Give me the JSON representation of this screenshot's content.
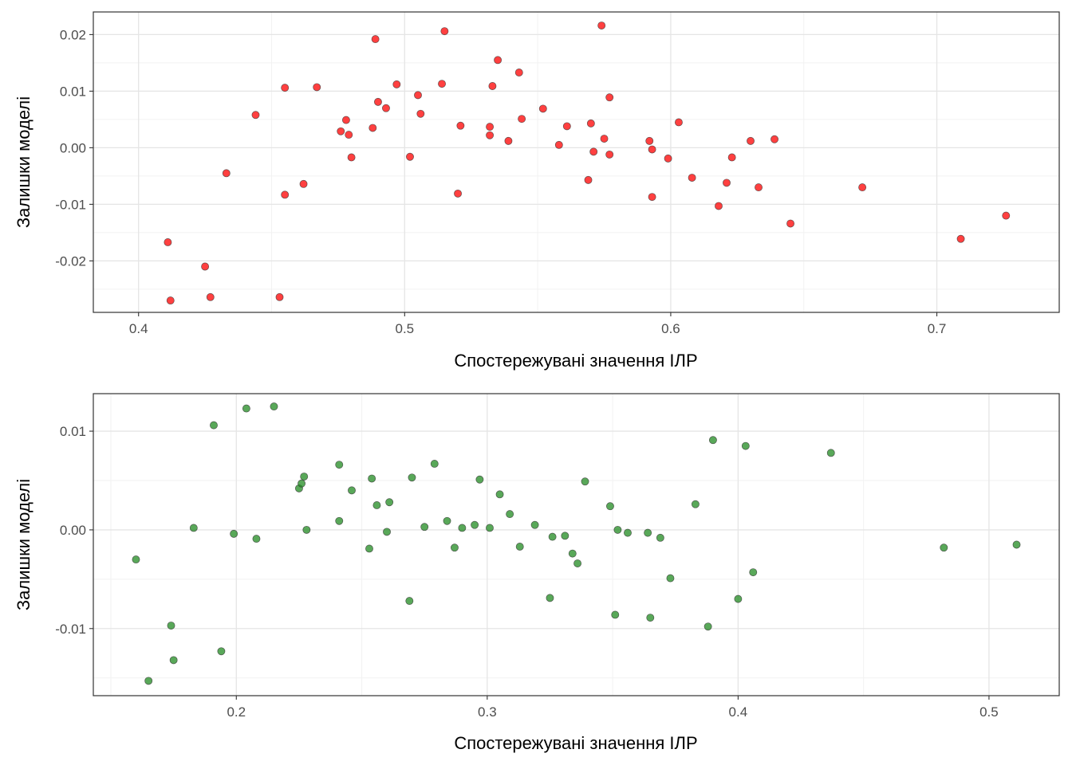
{
  "chart_data": [
    {
      "type": "scatter",
      "title": "",
      "xlabel": "Спостережувані значення ІЛР",
      "ylabel": "Залишки моделі",
      "xlim": [
        0.383,
        0.746
      ],
      "ylim": [
        -0.0291,
        0.024
      ],
      "x_ticks": [
        0.4,
        0.5,
        0.6,
        0.7
      ],
      "x_tick_labels": [
        "0.4",
        "0.5",
        "0.6",
        "0.7"
      ],
      "y_ticks": [
        -0.02,
        -0.01,
        0.0,
        0.01,
        0.02
      ],
      "y_tick_labels": [
        "-0.02",
        "-0.01",
        "0.00",
        "0.01",
        "0.02"
      ],
      "grid": true,
      "point_color": "#ff0000",
      "series": [
        {
          "points": [
            [
              0.411,
              -0.0167
            ],
            [
              0.412,
              -0.027
            ],
            [
              0.425,
              -0.021
            ],
            [
              0.427,
              -0.0264
            ],
            [
              0.433,
              -0.0045
            ],
            [
              0.444,
              0.0058
            ],
            [
              0.453,
              -0.0264
            ],
            [
              0.455,
              0.0106
            ],
            [
              0.455,
              -0.0083
            ],
            [
              0.462,
              -0.0064
            ],
            [
              0.467,
              0.0107
            ],
            [
              0.476,
              0.0029
            ],
            [
              0.478,
              0.0049
            ],
            [
              0.479,
              0.0023
            ],
            [
              0.48,
              -0.0017
            ],
            [
              0.488,
              0.0035
            ],
            [
              0.489,
              0.0192
            ],
            [
              0.49,
              0.0081
            ],
            [
              0.493,
              0.007
            ],
            [
              0.497,
              0.0112
            ],
            [
              0.502,
              -0.0016
            ],
            [
              0.505,
              0.0093
            ],
            [
              0.506,
              0.006
            ],
            [
              0.514,
              0.0113
            ],
            [
              0.515,
              0.0206
            ],
            [
              0.52,
              -0.0081
            ],
            [
              0.521,
              0.0039
            ],
            [
              0.532,
              0.0037
            ],
            [
              0.532,
              0.0022
            ],
            [
              0.533,
              0.0109
            ],
            [
              0.535,
              0.0155
            ],
            [
              0.539,
              0.0012
            ],
            [
              0.543,
              0.0133
            ],
            [
              0.544,
              0.0051
            ],
            [
              0.552,
              0.0069
            ],
            [
              0.558,
              0.0005
            ],
            [
              0.561,
              0.0038
            ],
            [
              0.569,
              -0.0057
            ],
            [
              0.57,
              0.0043
            ],
            [
              0.571,
              -0.0007
            ],
            [
              0.574,
              0.0216
            ],
            [
              0.575,
              0.0016
            ],
            [
              0.577,
              -0.0012
            ],
            [
              0.577,
              0.0089
            ],
            [
              0.592,
              0.0012
            ],
            [
              0.593,
              -0.0003
            ],
            [
              0.593,
              -0.0087
            ],
            [
              0.599,
              -0.0019
            ],
            [
              0.603,
              0.0045
            ],
            [
              0.608,
              -0.0053
            ],
            [
              0.618,
              -0.0103
            ],
            [
              0.621,
              -0.0062
            ],
            [
              0.623,
              -0.0017
            ],
            [
              0.63,
              0.0012
            ],
            [
              0.633,
              -0.007
            ],
            [
              0.639,
              0.0015
            ],
            [
              0.645,
              -0.0134
            ],
            [
              0.672,
              -0.007
            ],
            [
              0.709,
              -0.0161
            ],
            [
              0.726,
              -0.012
            ]
          ]
        }
      ]
    },
    {
      "type": "scatter",
      "title": "",
      "xlabel": "Спостережувані значення ІЛР",
      "ylabel": "Залишки моделі",
      "xlim": [
        0.143,
        0.528
      ],
      "ylim": [
        -0.0168,
        0.0138
      ],
      "x_ticks": [
        0.2,
        0.3,
        0.4,
        0.5
      ],
      "x_tick_labels": [
        "0.2",
        "0.3",
        "0.4",
        "0.5"
      ],
      "y_ticks": [
        -0.01,
        0.0,
        0.01
      ],
      "y_tick_labels": [
        "-0.01",
        "0.00",
        "0.01"
      ],
      "grid": true,
      "point_color": "#228b22",
      "series": [
        {
          "points": [
            [
              0.16,
              -0.003
            ],
            [
              0.165,
              -0.0153
            ],
            [
              0.174,
              -0.0097
            ],
            [
              0.175,
              -0.0132
            ],
            [
              0.183,
              0.0002
            ],
            [
              0.191,
              0.0106
            ],
            [
              0.194,
              -0.0123
            ],
            [
              0.199,
              -0.0004
            ],
            [
              0.204,
              0.0123
            ],
            [
              0.208,
              -0.0009
            ],
            [
              0.215,
              0.0125
            ],
            [
              0.225,
              0.0042
            ],
            [
              0.226,
              0.0047
            ],
            [
              0.227,
              0.0054
            ],
            [
              0.228,
              0.0
            ],
            [
              0.241,
              0.0009
            ],
            [
              0.241,
              0.0066
            ],
            [
              0.246,
              0.004
            ],
            [
              0.253,
              -0.0019
            ],
            [
              0.254,
              0.0052
            ],
            [
              0.256,
              0.0025
            ],
            [
              0.26,
              -0.0002
            ],
            [
              0.261,
              0.0028
            ],
            [
              0.269,
              -0.0072
            ],
            [
              0.27,
              0.0053
            ],
            [
              0.275,
              0.0003
            ],
            [
              0.279,
              0.0067
            ],
            [
              0.284,
              0.0009
            ],
            [
              0.287,
              -0.0018
            ],
            [
              0.29,
              0.0002
            ],
            [
              0.295,
              0.0005
            ],
            [
              0.297,
              0.0051
            ],
            [
              0.301,
              0.0002
            ],
            [
              0.305,
              0.0036
            ],
            [
              0.309,
              0.0016
            ],
            [
              0.313,
              -0.0017
            ],
            [
              0.319,
              0.0005
            ],
            [
              0.325,
              -0.0069
            ],
            [
              0.326,
              -0.0007
            ],
            [
              0.331,
              -0.0006
            ],
            [
              0.334,
              -0.0024
            ],
            [
              0.336,
              -0.0034
            ],
            [
              0.339,
              0.0049
            ],
            [
              0.349,
              0.0024
            ],
            [
              0.351,
              -0.0086
            ],
            [
              0.352,
              0.0
            ],
            [
              0.356,
              -0.0003
            ],
            [
              0.364,
              -0.0003
            ],
            [
              0.365,
              -0.0089
            ],
            [
              0.369,
              -0.0008
            ],
            [
              0.373,
              -0.0049
            ],
            [
              0.383,
              0.0026
            ],
            [
              0.388,
              -0.0098
            ],
            [
              0.39,
              0.0091
            ],
            [
              0.4,
              -0.007
            ],
            [
              0.403,
              0.0085
            ],
            [
              0.406,
              -0.0043
            ],
            [
              0.437,
              0.0078
            ],
            [
              0.482,
              -0.0018
            ],
            [
              0.511,
              -0.0015
            ]
          ]
        }
      ]
    }
  ]
}
